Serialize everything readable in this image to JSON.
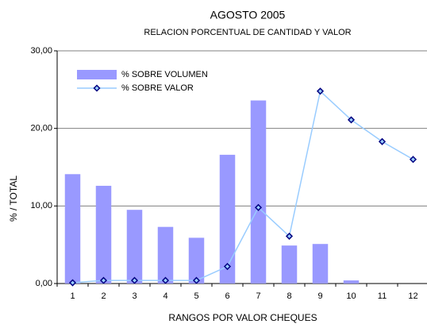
{
  "chart_data": {
    "type": "bar",
    "title": "AGOSTO  2005",
    "subtitle": "RELACION PORCENTUAL DE CANTIDAD Y VALOR",
    "x_label": "RANGOS POR VALOR CHEQUES",
    "y_label": "%  /   TOTAL",
    "categories": [
      "1",
      "2",
      "3",
      "4",
      "5",
      "6",
      "7",
      "8",
      "9",
      "10",
      "11",
      "12"
    ],
    "series": [
      {
        "name": "% SOBRE VOLUMEN",
        "type": "bar",
        "color": "#9999ff",
        "values": [
          14.1,
          12.6,
          9.5,
          7.3,
          5.9,
          16.6,
          23.6,
          4.9,
          5.1,
          0.4,
          0,
          0
        ]
      },
      {
        "name": "% SOBRE VALOR",
        "type": "line",
        "color": "#99ccff",
        "marker_color": "#000080",
        "values": [
          0.1,
          0.4,
          0.4,
          0.4,
          0.4,
          2.2,
          9.8,
          6.1,
          24.8,
          21.1,
          18.3,
          16.0
        ]
      }
    ],
    "ylim": [
      0,
      30
    ],
    "yticks": [
      {
        "value": 0,
        "label": "0,00"
      },
      {
        "value": 10,
        "label": "10,00"
      },
      {
        "value": 20,
        "label": "20,00"
      },
      {
        "value": 30,
        "label": "30,00"
      }
    ],
    "grid": true,
    "legend": "upper left"
  }
}
